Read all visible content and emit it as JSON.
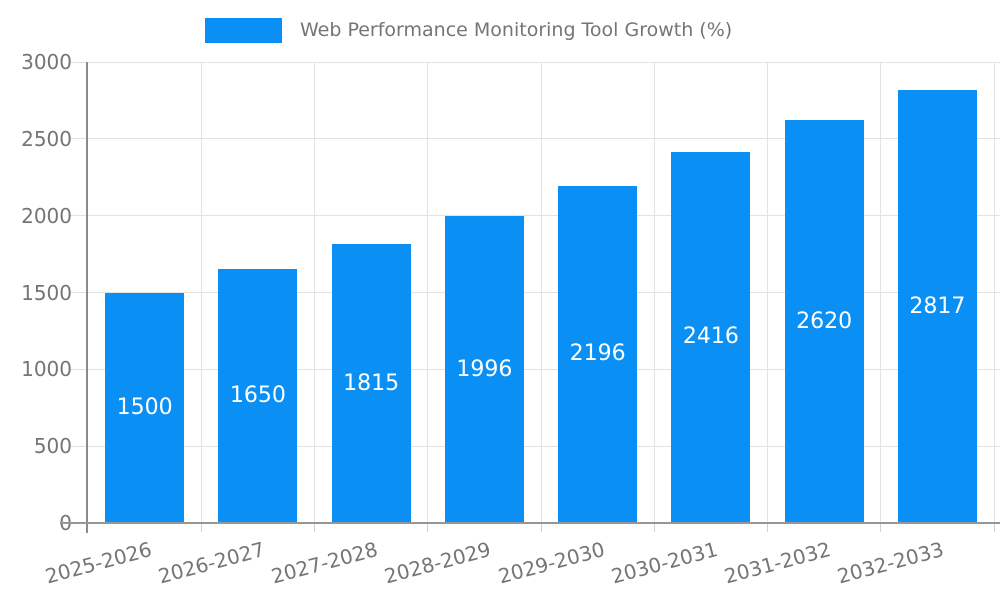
{
  "legend": {
    "label": "Web Performance Monitoring Tool Growth (%)"
  },
  "chart_data": {
    "type": "bar",
    "title": "",
    "legend_entries": [
      "Web Performance Monitoring Tool Growth (%)"
    ],
    "legend_position": "top",
    "categories": [
      "2025-2026",
      "2026-2027",
      "2027-2028",
      "2028-2029",
      "2029-2030",
      "2030-2031",
      "2031-2032",
      "2032-2033"
    ],
    "values": [
      1500,
      1650,
      1815,
      1996,
      2196,
      2416,
      2620,
      2817
    ],
    "bar_value_labels": [
      "1500",
      "1650",
      "1815",
      "1996",
      "2196",
      "2416",
      "2620",
      "2817"
    ],
    "y_ticks": [
      0,
      500,
      1000,
      1500,
      2000,
      2500,
      3000
    ],
    "ylim": [
      0,
      3000
    ],
    "xlabel": "",
    "ylabel": "",
    "grid": true,
    "x_label_rotation_deg": -15,
    "bar_label_position": "center"
  },
  "colors": {
    "bar": "#0a90f5",
    "grid": "#e2e2e2",
    "tick": "#cfcfcf",
    "axis": "#969696",
    "y_axis_line": "#8a8a8a",
    "text": "#757575",
    "value_label": "#ffffff",
    "background": "#ffffff"
  }
}
